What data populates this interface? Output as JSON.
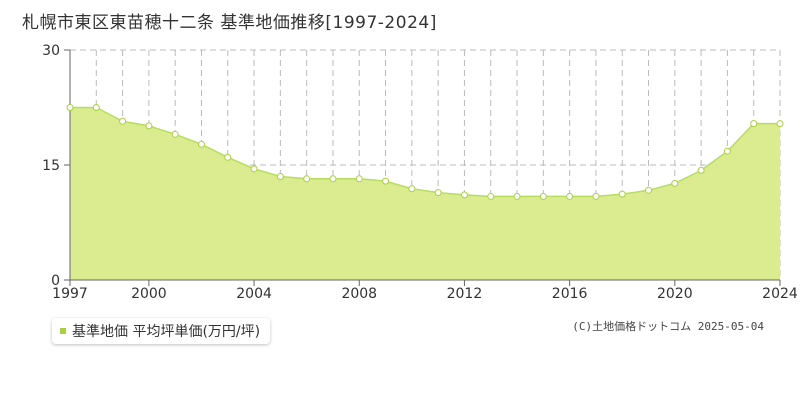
{
  "title": "札幌市東区東苗穂十二条 基準地価推移[1997-2024]",
  "legend": {
    "label": "基準地価 平均坪単価(万円/坪)"
  },
  "copyright": "(C)土地価格ドットコム 2025-05-04",
  "colors": {
    "area_fill": "#dbec90",
    "line": "#b8dc60",
    "marker_fill": "#ffffff",
    "marker_stroke": "#a8d040",
    "grid": "#bbbbbb",
    "axis": "#666666",
    "plot_bg_band": "#f7f7f7"
  },
  "chart_data": {
    "type": "area",
    "title": "札幌市東区東苗穂十二条 基準地価推移[1997-2024]",
    "xlabel": "",
    "ylabel": "",
    "xlim": [
      1997,
      2024
    ],
    "ylim": [
      0,
      30
    ],
    "x_ticks": [
      "1997",
      "2000",
      "2004",
      "2008",
      "2012",
      "2016",
      "2020",
      "2024"
    ],
    "y_ticks": [
      "0",
      "15",
      "30"
    ],
    "grid": true,
    "legend_position": "bottom-left",
    "series": [
      {
        "name": "基準地価 平均坪単価(万円/坪)",
        "x": [
          1997,
          1998,
          1999,
          2000,
          2001,
          2002,
          2003,
          2004,
          2005,
          2006,
          2007,
          2008,
          2009,
          2010,
          2011,
          2012,
          2013,
          2014,
          2015,
          2016,
          2017,
          2018,
          2019,
          2020,
          2021,
          2022,
          2023,
          2024
        ],
        "values": [
          22.5,
          22.5,
          20.7,
          20.1,
          19.0,
          17.7,
          16.0,
          14.5,
          13.5,
          13.2,
          13.2,
          13.2,
          12.9,
          11.9,
          11.4,
          11.1,
          10.9,
          10.9,
          10.9,
          10.9,
          10.9,
          11.2,
          11.7,
          12.6,
          14.3,
          16.8,
          20.4,
          20.4
        ]
      }
    ]
  }
}
